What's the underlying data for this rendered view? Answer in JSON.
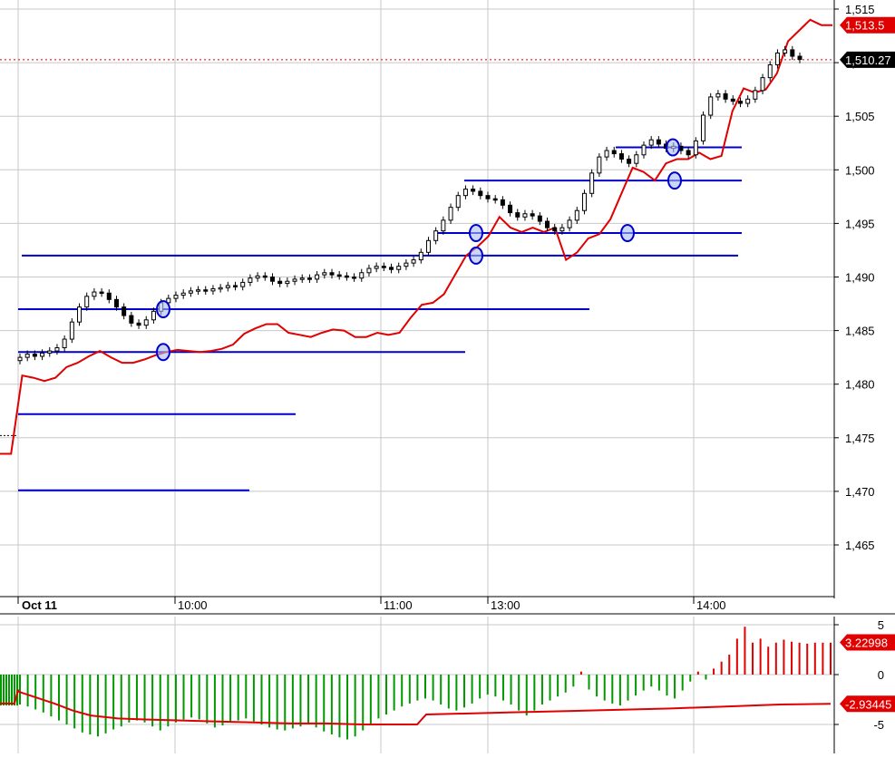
{
  "chart_data": [
    {
      "type": "candlestick",
      "title": "",
      "y_ticks": [
        1465,
        1470,
        1475,
        1480,
        1485,
        1490,
        1495,
        1500,
        1505,
        1510,
        1515
      ],
      "y_tick_labels": [
        "1,465",
        "1,470",
        "1,475",
        "1,480",
        "1,485",
        "1,490",
        "1,495",
        "1,500",
        "1,505",
        "1,510",
        "1,515"
      ],
      "ylim": [
        1460.5,
        1516.5
      ],
      "x_tick_labels": [
        "Oct 11",
        "10:00",
        "11:00",
        "13:00",
        "14:00"
      ],
      "grid": true,
      "price_series": [
        1482.5,
        1482.8,
        1482.6,
        1482.9,
        1483.1,
        1483.4,
        1484.2,
        1485.8,
        1487.2,
        1488.2,
        1488.6,
        1488.5,
        1487.9,
        1487.2,
        1486.4,
        1485.7,
        1485.5,
        1486.0,
        1486.8,
        1487.6,
        1488.0,
        1488.3,
        1488.5,
        1488.7,
        1488.8,
        1488.7,
        1488.9,
        1489.0,
        1489.2,
        1489.1,
        1489.5,
        1489.9,
        1490.1,
        1490.0,
        1489.6,
        1489.4,
        1489.6,
        1489.8,
        1489.9,
        1489.8,
        1490.2,
        1490.4,
        1490.2,
        1490.1,
        1490.0,
        1489.9,
        1490.4,
        1490.8,
        1491.0,
        1490.9,
        1490.7,
        1491.0,
        1491.3,
        1491.6,
        1492.3,
        1493.4,
        1494.3,
        1495.3,
        1496.5,
        1497.6,
        1498.2,
        1498.0,
        1497.6,
        1497.3,
        1497.2,
        1496.7,
        1496.0,
        1495.6,
        1495.9,
        1495.7,
        1495.2,
        1494.6,
        1494.3,
        1494.6,
        1495.3,
        1496.2,
        1497.8,
        1499.7,
        1501.2,
        1501.8,
        1501.5,
        1501.0,
        1500.6,
        1501.4,
        1502.3,
        1502.8,
        1502.4,
        1502.0,
        1502.2,
        1501.8,
        1501.4,
        1502.7,
        1505.1,
        1506.8,
        1507.1,
        1506.6,
        1506.4,
        1506.2,
        1506.6,
        1507.4,
        1508.6,
        1509.8,
        1510.9,
        1511.2,
        1510.6,
        1510.3
      ],
      "red_line": [
        1473.5,
        1473.5,
        1480.8,
        1480.6,
        1480.3,
        1480.6,
        1481.6,
        1482.0,
        1482.6,
        1483.1,
        1482.5,
        1482.0,
        1482.0,
        1482.3,
        1482.7,
        1483.0,
        1483.2,
        1483.1,
        1483.0,
        1483.1,
        1483.3,
        1483.7,
        1484.7,
        1485.2,
        1485.6,
        1485.6,
        1484.8,
        1484.6,
        1484.4,
        1484.8,
        1485.1,
        1485.0,
        1484.4,
        1484.4,
        1484.8,
        1484.6,
        1484.8,
        1486.2,
        1487.4,
        1487.6,
        1488.4,
        1490.2,
        1492.0,
        1492.8,
        1493.8,
        1495.6,
        1494.6,
        1494.2,
        1494.6,
        1494.2,
        1494.6,
        1491.6,
        1492.3,
        1493.6,
        1494.0,
        1495.4,
        1497.8,
        1500.2,
        1499.8,
        1499.0,
        1500.6,
        1501.0,
        1501.0,
        1501.6,
        1501.0,
        1501.3,
        1505.5,
        1507.6,
        1507.2,
        1507.5,
        1509.0,
        1512.0,
        1513.0,
        1514.0,
        1513.5,
        1513.5
      ],
      "horizontal_levels": [
        {
          "value": 1492.0
        },
        {
          "value": 1487.0
        },
        {
          "value": 1483.0
        },
        {
          "value": 1477.2
        },
        {
          "value": 1470.1
        },
        {
          "value": 1494.1
        },
        {
          "value": 1499.0
        },
        {
          "value": 1502.1
        }
      ],
      "current_red_value": "1,513.5",
      "current_price_value": "1,510.27",
      "current_price_line": 1510.27
    },
    {
      "type": "bar",
      "title": "",
      "y_ticks": [
        5,
        0,
        -5
      ],
      "y_tick_labels": [
        "5",
        "0",
        "-5"
      ],
      "ylim": [
        -7.6,
        7.3
      ],
      "histogram": [
        -3.0,
        -3.2,
        -3.5,
        -3.8,
        -4.2,
        -4.6,
        -5.0,
        -5.4,
        -5.8,
        -6.0,
        -6.2,
        -5.9,
        -5.5,
        -5.2,
        -4.8,
        -4.6,
        -4.8,
        -5.2,
        -5.6,
        -5.2,
        -4.8,
        -4.5,
        -4.3,
        -4.5,
        -4.9,
        -5.3,
        -5.1,
        -4.8,
        -4.6,
        -4.4,
        -4.7,
        -5.0,
        -5.3,
        -5.5,
        -5.6,
        -5.4,
        -5.2,
        -5.0,
        -5.3,
        -5.7,
        -6.0,
        -6.3,
        -6.5,
        -6.2,
        -5.6,
        -5.0,
        -4.4,
        -4.0,
        -3.6,
        -3.2,
        -2.9,
        -2.6,
        -2.4,
        -2.6,
        -3.0,
        -3.4,
        -3.6,
        -3.3,
        -2.9,
        -2.4,
        -2.0,
        -2.2,
        -2.6,
        -3.0,
        -3.6,
        -4.1,
        -3.6,
        -3.0,
        -2.6,
        -2.2,
        -1.8,
        -1.2,
        0.3,
        -1.5,
        -2.2,
        -2.6,
        -2.9,
        -3.1,
        -2.6,
        -2.1,
        -1.6,
        -1.2,
        -1.6,
        -2.1,
        -2.4,
        -1.6,
        -0.7,
        0.3,
        -0.5,
        0.6,
        1.3,
        2.0,
        3.6,
        4.8,
        3.2,
        3.6,
        2.8,
        3.2,
        3.5,
        3.3,
        3.2,
        3.1,
        3.2,
        3.2,
        3.2
      ],
      "signal_line": [
        -1.7,
        -2.3,
        -2.9,
        -3.6,
        -4.1,
        -4.4,
        -4.5,
        -4.6,
        -4.7,
        -4.8,
        -4.9,
        -4.9,
        -5.0,
        -5.0,
        -5.0,
        -4.0,
        -3.8,
        -3.6,
        -3.4,
        -3.2,
        -3.0,
        -2.93445
      ],
      "current_histogram_value": "3.22998",
      "current_signal_value": "-2.93445"
    }
  ],
  "colors": {
    "price": "#000000",
    "red_line": "#e00000",
    "levels": "#0000cc",
    "hist_positive": "#e00000",
    "hist_negative": "#009900",
    "signal": "#e00000",
    "label_red_bg": "#e00000",
    "label_black_bg": "#000000",
    "grid": "#c8c8c8",
    "marker_fill": "#aabbee",
    "marker_stroke": "#0000cc"
  }
}
